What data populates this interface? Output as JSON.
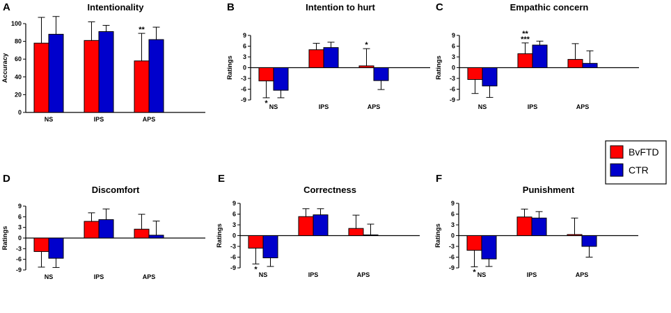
{
  "colors": {
    "bvftd": "#ff0000",
    "ctr": "#0000cc",
    "axis": "#000000"
  },
  "legend": {
    "items": [
      {
        "label": "BvFTD",
        "series": "bvftd"
      },
      {
        "label": "CTR",
        "series": "ctr"
      }
    ]
  },
  "chart_data": [
    {
      "type": "bar",
      "letter": "A",
      "title": "Intentionality",
      "ylabel": "Accuracy",
      "categories": [
        "NS",
        "IPS",
        "APS"
      ],
      "ylim": [
        0,
        100
      ],
      "yticks": [
        "0",
        "20",
        "40",
        "60",
        "80",
        "100"
      ],
      "series": [
        {
          "name": "BvFTD",
          "values": [
            78,
            81,
            58
          ],
          "err": [
            29,
            21,
            31
          ]
        },
        {
          "name": "CTR",
          "values": [
            88,
            91,
            82
          ],
          "err": [
            20,
            7,
            14
          ]
        }
      ],
      "annotations": [
        {
          "category": "APS",
          "series": "BvFTD",
          "text": "**",
          "position": "above"
        }
      ]
    },
    {
      "type": "bar",
      "letter": "B",
      "title": "Intention to hurt",
      "ylabel": "Ratings",
      "categories": [
        "NS",
        "IPS",
        "APS"
      ],
      "ylim": [
        -9,
        9
      ],
      "yticks": [
        "-9",
        "-6",
        "-3",
        "0",
        "3",
        "6",
        "9"
      ],
      "series": [
        {
          "name": "BvFTD",
          "values": [
            -3.7,
            5.0,
            0.5
          ],
          "err": [
            4.7,
            1.8,
            4.8
          ]
        },
        {
          "name": "CTR",
          "values": [
            -6.3,
            5.6,
            -3.6
          ],
          "err": [
            2.1,
            1.5,
            2.5
          ]
        }
      ],
      "annotations": [
        {
          "category": "NS",
          "series": "BvFTD",
          "text": "*",
          "position": "below"
        },
        {
          "category": "APS",
          "series": "BvFTD",
          "text": "*",
          "position": "above"
        }
      ]
    },
    {
      "type": "bar",
      "letter": "C",
      "title": "Empathic concern",
      "ylabel": "Ratings",
      "categories": [
        "NS",
        "IPS",
        "APS"
      ],
      "ylim": [
        -9,
        9
      ],
      "yticks": [
        "-9",
        "-6",
        "-3",
        "0",
        "3",
        "6",
        "9"
      ],
      "series": [
        {
          "name": "BvFTD",
          "values": [
            -3.3,
            3.9,
            2.3
          ],
          "err": [
            3.9,
            3.0,
            4.4
          ]
        },
        {
          "name": "CTR",
          "values": [
            -5.1,
            6.3,
            1.2
          ],
          "err": [
            3.2,
            1.1,
            3.5
          ]
        }
      ],
      "annotations": [
        {
          "category": "IPS",
          "series": "BvFTD",
          "text": "**\n***",
          "position": "above"
        }
      ]
    },
    {
      "type": "bar",
      "letter": "D",
      "title": "Discomfort",
      "ylabel": "Ratings",
      "categories": [
        "NS",
        "IPS",
        "APS"
      ],
      "ylim": [
        -9,
        9
      ],
      "yticks": [
        "-9",
        "-6",
        "-3",
        "0",
        "3",
        "6",
        "9"
      ],
      "series": [
        {
          "name": "BvFTD",
          "values": [
            -3.8,
            4.7,
            2.5
          ],
          "err": [
            4.4,
            2.4,
            4.2
          ]
        },
        {
          "name": "CTR",
          "values": [
            -5.7,
            5.2,
            0.8
          ],
          "err": [
            2.6,
            3.0,
            4.0
          ]
        }
      ],
      "annotations": []
    },
    {
      "type": "bar",
      "letter": "E",
      "title": "Correctness",
      "ylabel": "Ratings",
      "categories": [
        "NS",
        "IPS",
        "APS"
      ],
      "ylim": [
        -9,
        9
      ],
      "yticks": [
        "-9",
        "-6",
        "-3",
        "0",
        "3",
        "6",
        "9"
      ],
      "series": [
        {
          "name": "BvFTD",
          "values": [
            -3.5,
            5.3,
            2.0
          ],
          "err": [
            4.4,
            2.2,
            3.7
          ]
        },
        {
          "name": "CTR",
          "values": [
            -6.2,
            5.8,
            0.2
          ],
          "err": [
            2.4,
            1.7,
            3.0
          ]
        }
      ],
      "annotations": [
        {
          "category": "NS",
          "series": "BvFTD",
          "text": "*",
          "position": "below"
        }
      ]
    },
    {
      "type": "bar",
      "letter": "F",
      "title": "Punishment",
      "ylabel": "Ratings",
      "categories": [
        "NS",
        "IPS",
        "APS"
      ],
      "ylim": [
        -9,
        9
      ],
      "yticks": [
        "-9",
        "-6",
        "-3",
        "0",
        "3",
        "6",
        "9"
      ],
      "series": [
        {
          "name": "BvFTD",
          "values": [
            -4.1,
            5.2,
            0.3
          ],
          "err": [
            4.6,
            2.2,
            4.6
          ]
        },
        {
          "name": "CTR",
          "values": [
            -6.5,
            4.9,
            -3.0
          ],
          "err": [
            2.1,
            1.8,
            3.0
          ]
        }
      ],
      "annotations": [
        {
          "category": "NS",
          "series": "BvFTD",
          "text": "*",
          "position": "below"
        }
      ]
    }
  ]
}
